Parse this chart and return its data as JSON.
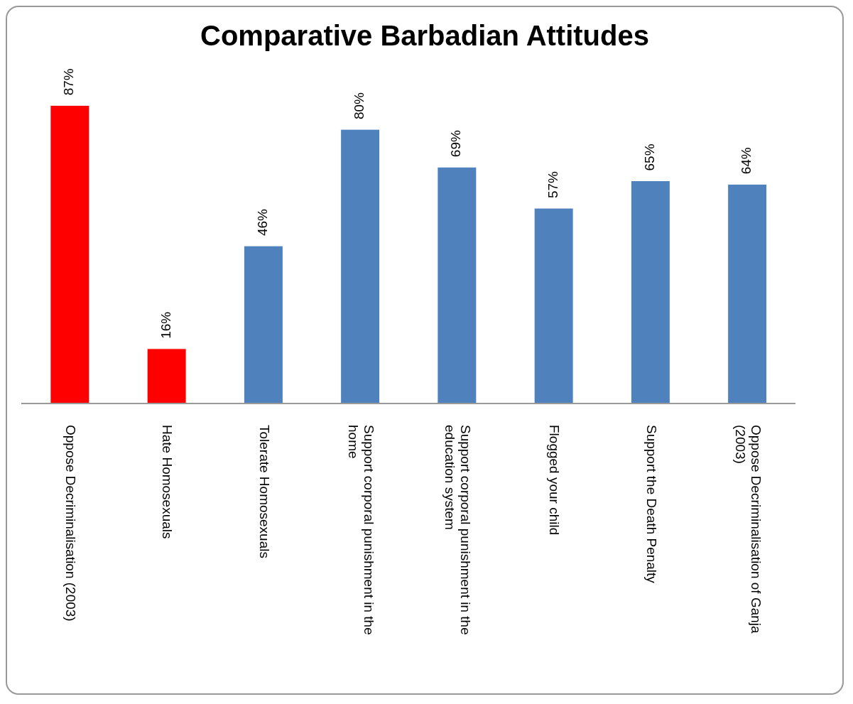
{
  "chart_data": {
    "type": "bar",
    "title": "Comparative Barbadian Attitudes",
    "categories": [
      "Oppose Decriminalisation (2003)",
      "Hate Homosexuals",
      "Tolerate Homosexuals",
      "Support corporal punishment in the home",
      "Support corporal punishment in the education system",
      "Flogged your child",
      "Support the Death Penalty",
      "Oppose Decriminalisation of Ganja (2003)"
    ],
    "values": [
      87,
      16,
      46,
      80,
      69,
      57,
      65,
      64
    ],
    "value_labels": [
      "87%",
      "16%",
      "46%",
      "80%",
      "69%",
      "57%",
      "65%",
      "64%"
    ],
    "colors": [
      "#ff0000",
      "#ff0000",
      "#4f81bd",
      "#4f81bd",
      "#4f81bd",
      "#4f81bd",
      "#4f81bd",
      "#4f81bd"
    ],
    "grid": false,
    "legend": false
  }
}
